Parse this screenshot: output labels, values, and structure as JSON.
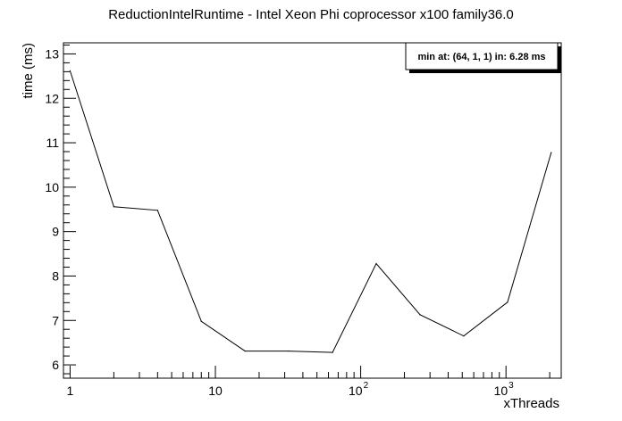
{
  "chart_data": {
    "type": "line",
    "title": "ReductionIntelRuntime - Intel Xeon Phi coprocessor x100 family36.0",
    "xlabel": "xThreads",
    "ylabel": "time (ms)",
    "xscale": "log",
    "xlim": [
      0.9,
      2400
    ],
    "ylim": [
      5.7,
      13.25
    ],
    "grid": false,
    "annotation": "min at: (64, 1, 1) in: 6.28 ms",
    "annotation_position": "top-right",
    "x_ticks": [
      {
        "value": 1,
        "base": "1",
        "exp": ""
      },
      {
        "value": 10,
        "base": "10",
        "exp": ""
      },
      {
        "value": 100,
        "base": "10",
        "exp": "2"
      },
      {
        "value": 1000,
        "base": "10",
        "exp": "3"
      }
    ],
    "y_ticks": [
      {
        "value": 6,
        "label": "6"
      },
      {
        "value": 7,
        "label": "7"
      },
      {
        "value": 8,
        "label": "8"
      },
      {
        "value": 9,
        "label": "9"
      },
      {
        "value": 10,
        "label": "10"
      },
      {
        "value": 11,
        "label": "11"
      },
      {
        "value": 12,
        "label": "12"
      },
      {
        "value": 13,
        "label": "13"
      }
    ],
    "series": [
      {
        "x": [
          1,
          2,
          4,
          8,
          16,
          32,
          64,
          128,
          256,
          512,
          1024,
          2048
        ],
        "values": [
          12.62,
          9.56,
          9.48,
          6.98,
          6.31,
          6.31,
          6.28,
          8.28,
          7.13,
          6.65,
          7.41,
          10.78
        ]
      }
    ],
    "colors": {
      "line": "#000000",
      "axis": "#000000",
      "legend_bg": "#ffffff",
      "legend_shadow": "#000000"
    }
  }
}
